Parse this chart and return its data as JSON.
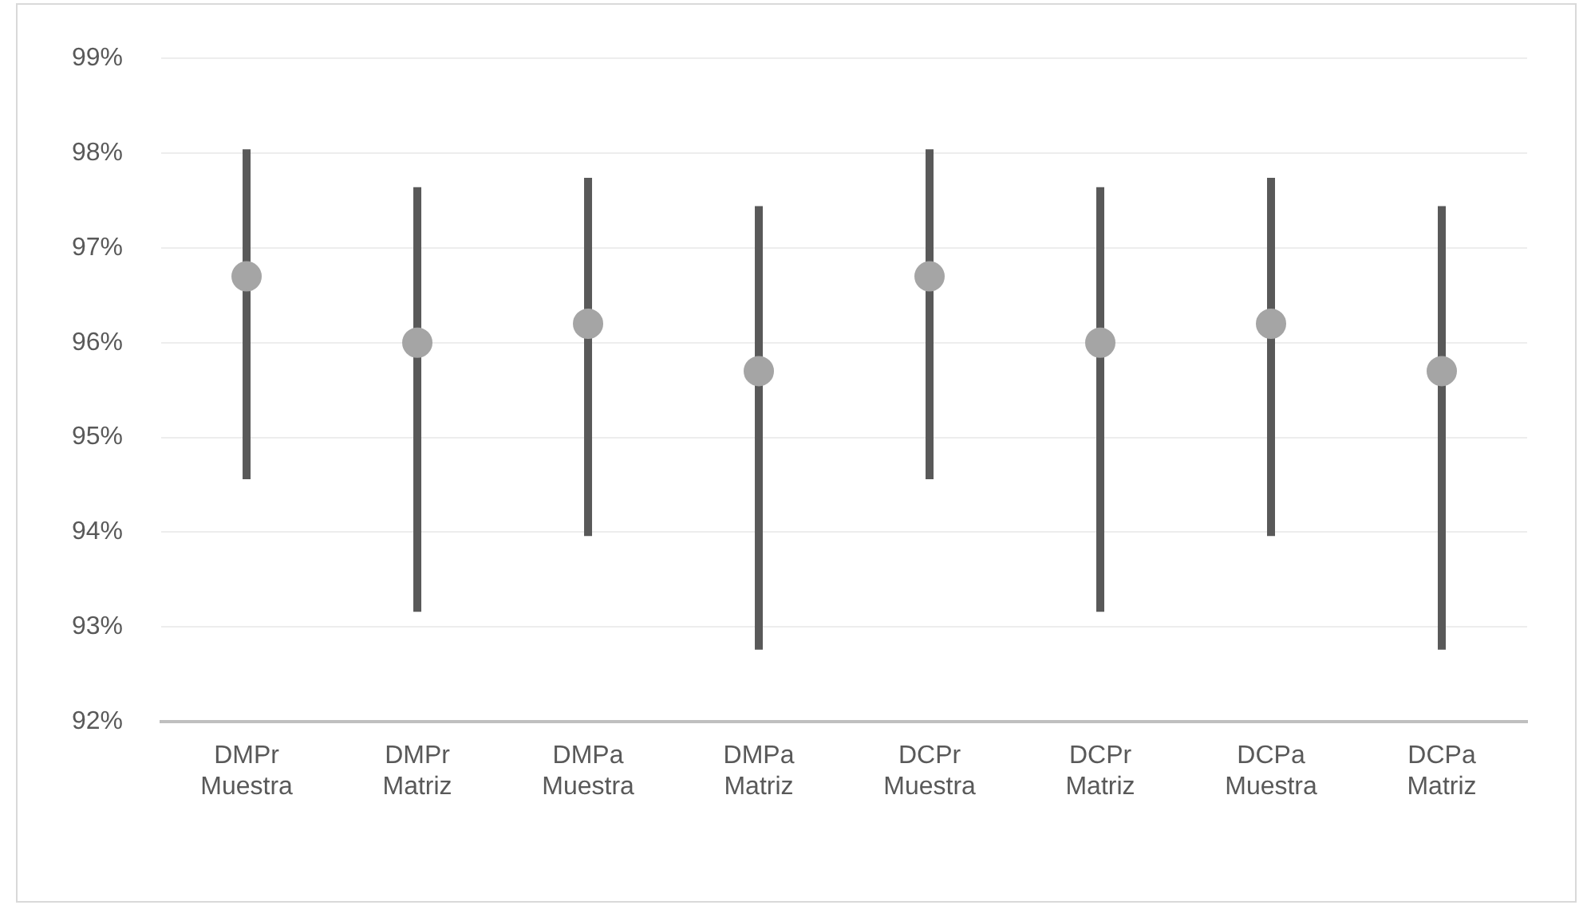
{
  "chart_data": {
    "type": "scatter",
    "categories": [
      "DMPr Muestra",
      "DMPr Matriz",
      "DMPa Muestra",
      "DMPa Matriz",
      "DCPr Muestra",
      "DCPr Matriz",
      "DCPa Muestra",
      "DCPa Matriz"
    ],
    "values": [
      96.7,
      96.0,
      96.2,
      95.7,
      96.7,
      96.0,
      96.2,
      95.7
    ],
    "errors": [
      [
        94.56,
        98.04
      ],
      [
        93.16,
        97.64
      ],
      [
        93.96,
        97.74
      ],
      [
        92.76,
        97.44
      ],
      [
        94.56,
        98.04
      ],
      [
        93.16,
        97.64
      ],
      [
        93.96,
        97.74
      ],
      [
        92.76,
        97.44
      ]
    ],
    "color": "#a5a5a5",
    "marker": "circle",
    "ylim": [
      92,
      99
    ],
    "yticks": [
      {
        "value": 92,
        "label": "92%"
      },
      {
        "value": 93,
        "label": "93%"
      },
      {
        "value": 94,
        "label": "94%"
      },
      {
        "value": 95,
        "label": "95%"
      },
      {
        "value": 96,
        "label": "96%"
      },
      {
        "value": 97,
        "label": "97%"
      },
      {
        "value": 98,
        "label": "98%"
      },
      {
        "value": 99,
        "label": "99%"
      }
    ],
    "grid": "y"
  }
}
